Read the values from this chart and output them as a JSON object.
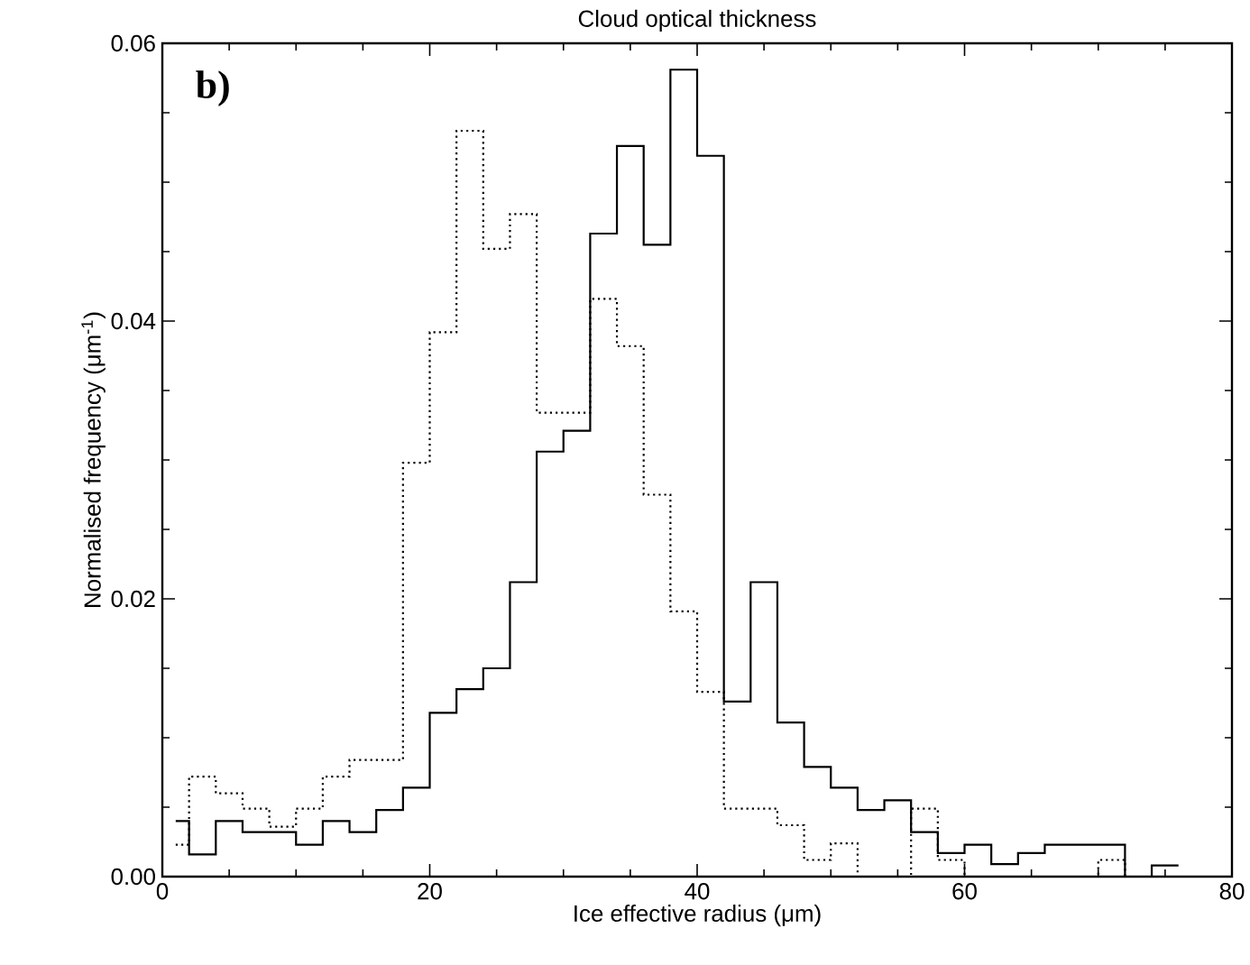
{
  "chart_data": {
    "type": "histogram",
    "title": "Cloud optical thickness",
    "xlabel": "Ice effective radius (μm)",
    "ylabel": "Normalised frequency (μm$^{-1}$)",
    "annotations": [
      "b)"
    ],
    "bins": [
      1,
      2,
      4,
      6,
      8,
      10,
      12,
      14,
      16,
      18,
      20,
      22,
      24,
      26,
      28,
      30,
      32,
      34,
      36,
      38,
      40,
      42,
      44,
      46,
      48,
      50,
      52,
      54,
      56,
      58,
      60,
      62,
      64,
      66,
      68,
      70,
      72,
      74,
      76
    ],
    "series": [
      {
        "color": "#000000",
        "line_style": "solid",
        "values": [
          0.004,
          0.0016,
          0.004,
          0.0032,
          0.0032,
          0.0023,
          0.004,
          0.0032,
          0.0048,
          0.0064,
          0.0118,
          0.0135,
          0.015,
          0.0212,
          0.0306,
          0.0321,
          0.0463,
          0.0526,
          0.0455,
          0.0581,
          0.0519,
          0.0126,
          0.0212,
          0.0111,
          0.0079,
          0.0064,
          0.0048,
          0.0055,
          0.0032,
          0.0017,
          0.0023,
          0.0009,
          0.0017,
          0.0023,
          0.0023,
          0.0023,
          0,
          0.0008
        ]
      },
      {
        "color": "#000000",
        "line_style": "dotted",
        "values": [
          0.0023,
          0.0072,
          0.006,
          0.0049,
          0.0036,
          0.0049,
          0.0072,
          0.0084,
          0.0084,
          0.0298,
          0.0392,
          0.0537,
          0.0452,
          0.0477,
          0.0334,
          0.0334,
          0.0416,
          0.0382,
          0.0275,
          0.0191,
          0.0133,
          0.0049,
          0.0049,
          0.0037,
          0.0012,
          0.0024,
          0,
          0,
          0.0049,
          0.0012,
          0,
          0,
          0,
          0,
          0,
          0.0012,
          0,
          0
        ]
      }
    ],
    "xlim": [
      0,
      80
    ],
    "ylim": [
      0,
      0.06
    ],
    "xticks": [
      0,
      20,
      40,
      60,
      80
    ],
    "yticks": [
      {
        "value": 0,
        "label": "0.00"
      },
      {
        "value": 0.02,
        "label": "0.02"
      },
      {
        "value": 0.04,
        "label": "0.04"
      },
      {
        "value": 0.06,
        "label": "0.06"
      }
    ],
    "grid": false
  }
}
